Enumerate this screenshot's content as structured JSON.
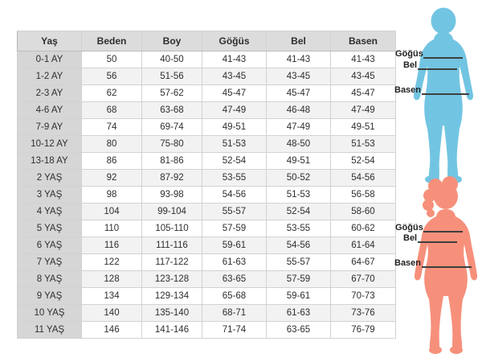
{
  "table": {
    "columns": [
      "Yaş",
      "Beden",
      "Boy",
      "Göğüs",
      "Bel",
      "Basen"
    ],
    "rows": [
      [
        "0-1 AY",
        "50",
        "40-50",
        "41-43",
        "41-43",
        "41-43"
      ],
      [
        "1-2 AY",
        "56",
        "51-56",
        "43-45",
        "43-45",
        "43-45"
      ],
      [
        "2-3 AY",
        "62",
        "57-62",
        "45-47",
        "45-47",
        "45-47"
      ],
      [
        "4-6 AY",
        "68",
        "63-68",
        "47-49",
        "46-48",
        "47-49"
      ],
      [
        "7-9 AY",
        "74",
        "69-74",
        "49-51",
        "47-49",
        "49-51"
      ],
      [
        "10-12 AY",
        "80",
        "75-80",
        "51-53",
        "48-50",
        "51-53"
      ],
      [
        "13-18 AY",
        "86",
        "81-86",
        "52-54",
        "49-51",
        "52-54"
      ],
      [
        "2 YAŞ",
        "92",
        "87-92",
        "53-55",
        "50-52",
        "54-56"
      ],
      [
        "3 YAŞ",
        "98",
        "93-98",
        "54-56",
        "51-53",
        "56-58"
      ],
      [
        "4 YAŞ",
        "104",
        "99-104",
        "55-57",
        "52-54",
        "58-60"
      ],
      [
        "5 YAŞ",
        "110",
        "105-110",
        "57-59",
        "53-55",
        "60-62"
      ],
      [
        "6 YAŞ",
        "116",
        "111-116",
        "59-61",
        "54-56",
        "61-64"
      ],
      [
        "7 YAŞ",
        "122",
        "117-122",
        "61-63",
        "55-57",
        "64-67"
      ],
      [
        "8 YAŞ",
        "128",
        "123-128",
        "63-65",
        "57-59",
        "67-70"
      ],
      [
        "9 YAŞ",
        "134",
        "129-134",
        "65-68",
        "59-61",
        "70-73"
      ],
      [
        "10 YAŞ",
        "140",
        "135-140",
        "68-71",
        "61-63",
        "73-76"
      ],
      [
        "11 YAŞ",
        "146",
        "141-146",
        "71-74",
        "63-65",
        "76-79"
      ]
    ]
  },
  "figures": {
    "boy": {
      "color": "#72c5e2",
      "measurements": [
        {
          "label": "Göğüs"
        },
        {
          "label": "Bel"
        },
        {
          "label": "Basen"
        }
      ]
    },
    "girl": {
      "color": "#f6907b",
      "measurements": [
        {
          "label": "Göğüs"
        },
        {
          "label": "Bel"
        },
        {
          "label": "Basen"
        }
      ]
    }
  },
  "colors": {
    "measure_line": "#3f3f3f",
    "header_bg": "#dcdcdc",
    "row_header_bg": "#d6d6d6",
    "alt_row_bg": "#f2f2f2",
    "boy": "#72c5e2",
    "girl": "#f6907b"
  }
}
